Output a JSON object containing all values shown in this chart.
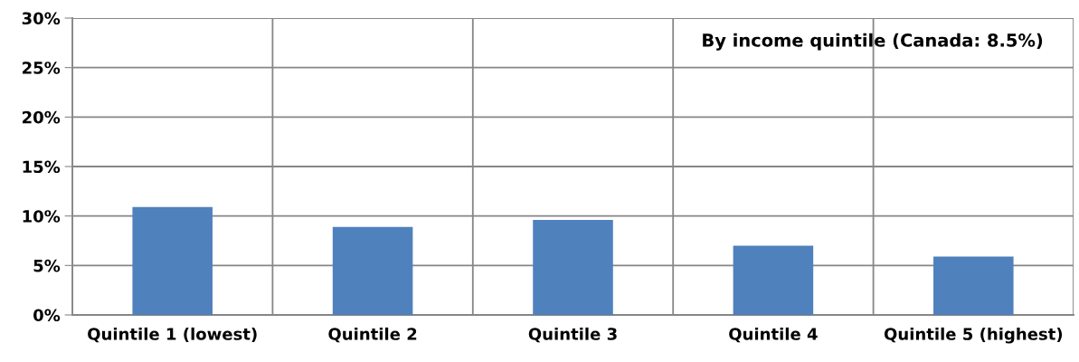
{
  "chart_data": {
    "type": "bar",
    "title": "By income quintile (Canada: 8.5%)",
    "categories": [
      "Quintile 1 (lowest)",
      "Quintile 2",
      "Quintile 3",
      "Quintile 4",
      "Quintile 5 (highest)"
    ],
    "values": [
      10.9,
      8.9,
      9.6,
      7.0,
      5.9
    ],
    "color": "#4f81bd",
    "ylim": [
      0,
      30
    ],
    "yticks": [
      {
        "value": 0,
        "label": "0%"
      },
      {
        "value": 5,
        "label": "5%"
      },
      {
        "value": 10,
        "label": "10%"
      },
      {
        "value": 15,
        "label": "15%"
      },
      {
        "value": 20,
        "label": "20%"
      },
      {
        "value": 25,
        "label": "25%"
      },
      {
        "value": 30,
        "label": "30%"
      }
    ],
    "grid": true
  }
}
